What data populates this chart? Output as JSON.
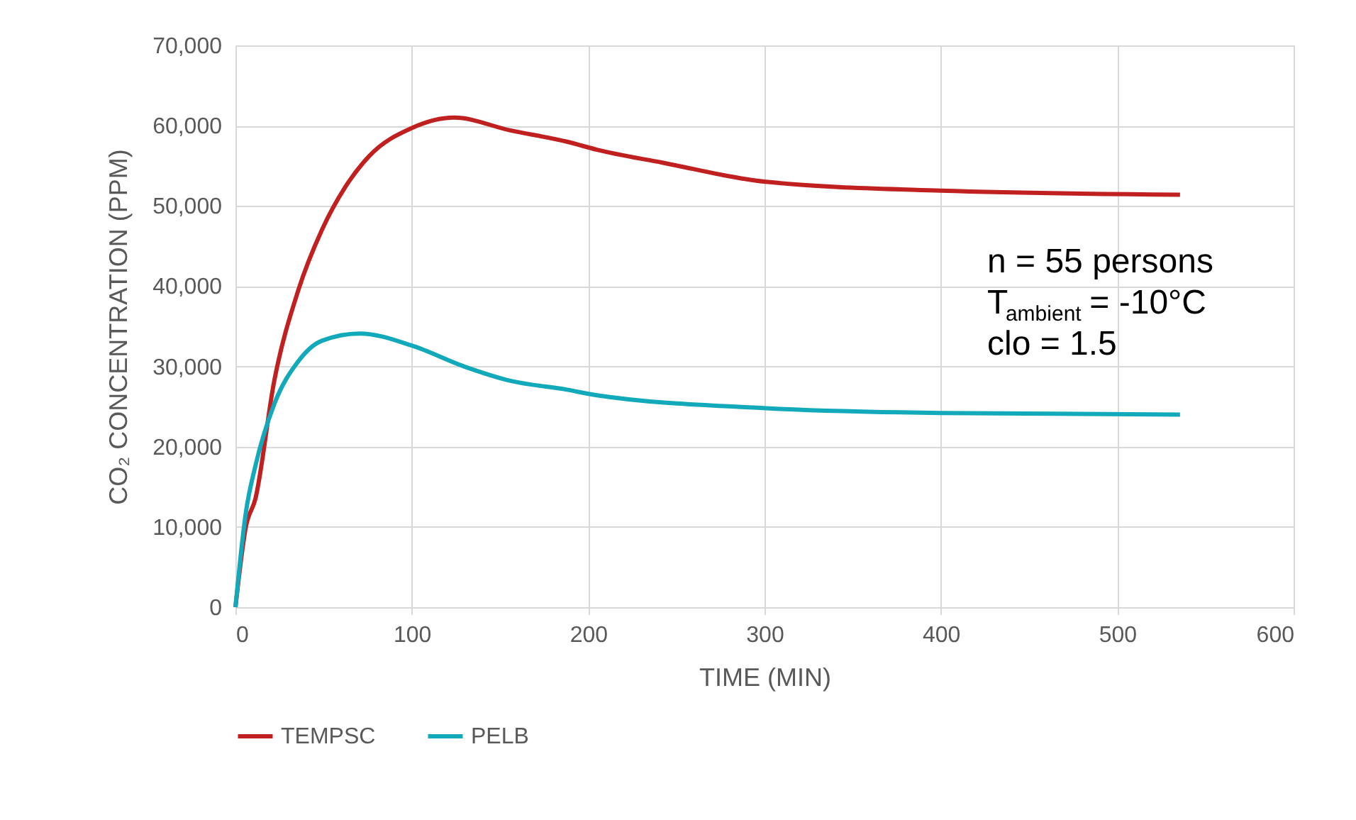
{
  "chart_data": {
    "type": "line",
    "xlabel": "TIME (MIN)",
    "ylabel": "CO₂ CONCENTRATION (PPM)",
    "xlim": [
      0,
      600
    ],
    "xticks": [
      0,
      100,
      200,
      300,
      400,
      500,
      600
    ],
    "ylim": [
      0,
      70000
    ],
    "yticks": [
      {
        "value": 0,
        "label": "0"
      },
      {
        "value": 10000,
        "label": "10,000"
      },
      {
        "value": 20000,
        "label": "20,000"
      },
      {
        "value": 30000,
        "label": "30,000"
      },
      {
        "value": 40000,
        "label": "40,000"
      },
      {
        "value": 50000,
        "label": "50,000"
      },
      {
        "value": 60000,
        "label": "60,000"
      },
      {
        "value": 70000,
        "label": "70,000"
      }
    ],
    "grid": true,
    "legend": "bottom",
    "marker": "none",
    "line_style": "solid",
    "series": [
      {
        "name": "TEMPSC",
        "color": "#c0201f",
        "x": [
          0,
          5.9,
          11.3,
          22,
          35.5,
          49,
          62.4,
          75.8,
          100,
          124,
          156,
          188,
          205,
          242,
          300.8,
          400,
          535.6
        ],
        "values": [
          0,
          10000,
          13500,
          28200,
          39400,
          47000,
          52400,
          56200,
          59700,
          61000,
          59400,
          58000,
          57000,
          55400,
          53000,
          51900,
          51400
        ]
      },
      {
        "name": "PELB",
        "color": "#12aabb",
        "x": [
          0,
          5.9,
          11.3,
          22,
          35.5,
          49,
          70.4,
          100,
          129.6,
          156,
          188,
          205,
          300.8,
          400,
          535.6
        ],
        "values": [
          0,
          11800,
          17600,
          25300,
          30600,
          33200,
          34100,
          32600,
          30000,
          28200,
          27100,
          26400,
          24800,
          24200,
          24000
        ]
      }
    ],
    "annotations": [
      "n = 55 persons",
      "T$_{ambient}$ = -10°C",
      "clo = 1.5"
    ]
  }
}
